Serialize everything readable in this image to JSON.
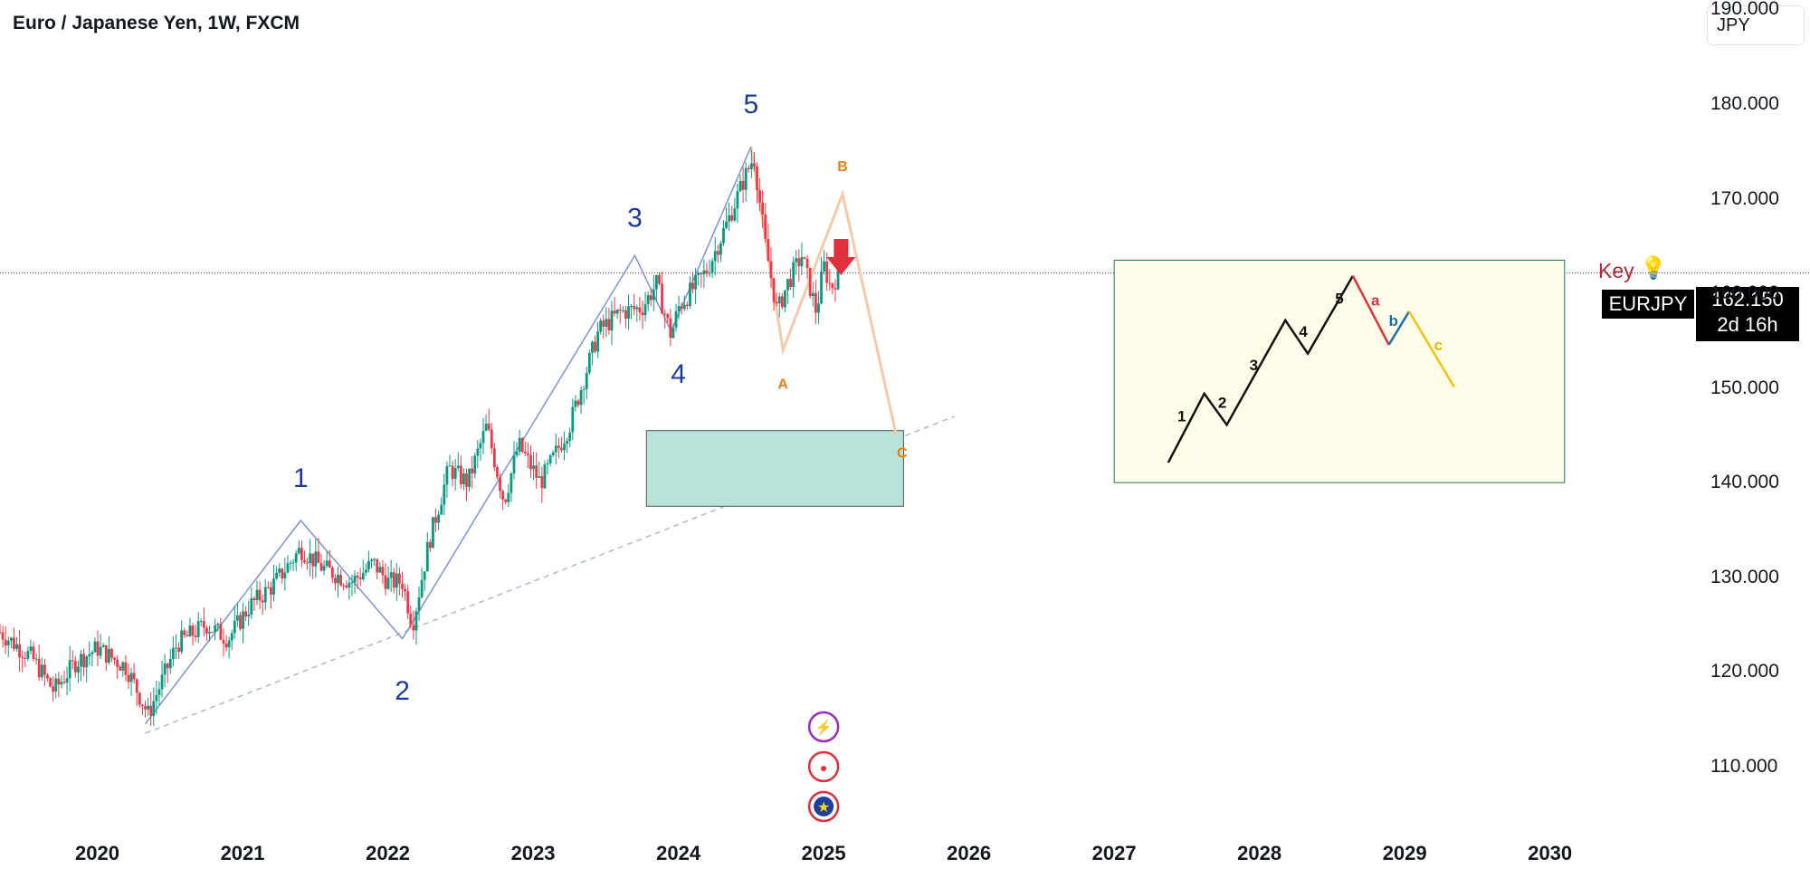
{
  "header": {
    "title": "Euro / Japanese Yen, 1W, FXCM",
    "currency_button": "JPY"
  },
  "price_scale": {
    "last_price": "162.150",
    "countdown": "2d 16h",
    "symbol": "EURJPY",
    "key_label": "Key",
    "key_icon": "lightbulb-icon"
  },
  "chart_data": {
    "type": "candlestick",
    "title": "Euro / Japanese Yen, 1W, FXCM",
    "y_ticks": [
      "190.000",
      "180.000",
      "170.000",
      "160.000",
      "150.000",
      "140.000",
      "130.000",
      "120.000",
      "110.000"
    ],
    "x_ticks": [
      "2020",
      "2021",
      "2022",
      "2023",
      "2024",
      "2025",
      "2026",
      "2027",
      "2028",
      "2029",
      "2030"
    ],
    "ylim": [
      103,
      191
    ],
    "xlim": [
      2019.33,
      2030.98
    ],
    "last_price": 162.15,
    "price_path": [
      [
        2019.33,
        124.2
      ],
      [
        2019.55,
        121.5
      ],
      [
        2019.7,
        118.0
      ],
      [
        2019.85,
        121.0
      ],
      [
        2020.0,
        122.5
      ],
      [
        2020.2,
        120.5
      ],
      [
        2020.35,
        115.5
      ],
      [
        2020.55,
        123.0
      ],
      [
        2020.75,
        125.0
      ],
      [
        2020.9,
        123.5
      ],
      [
        2021.05,
        127.0
      ],
      [
        2021.2,
        129.0
      ],
      [
        2021.4,
        133.0
      ],
      [
        2021.55,
        131.0
      ],
      [
        2021.75,
        129.5
      ],
      [
        2021.9,
        131.5
      ],
      [
        2022.0,
        129.5
      ],
      [
        2022.1,
        129.5
      ],
      [
        2022.17,
        125.0
      ],
      [
        2022.28,
        133.5
      ],
      [
        2022.42,
        141.5
      ],
      [
        2022.55,
        140.0
      ],
      [
        2022.68,
        146.0
      ],
      [
        2022.8,
        138.0
      ],
      [
        2022.9,
        144.0
      ],
      [
        2023.05,
        140.0
      ],
      [
        2023.12,
        142.0
      ],
      [
        2023.25,
        146.0
      ],
      [
        2023.45,
        156.0
      ],
      [
        2023.6,
        158.0
      ],
      [
        2023.75,
        158.5
      ],
      [
        2023.85,
        161.0
      ],
      [
        2023.95,
        155.5
      ],
      [
        2024.0,
        158.5
      ],
      [
        2024.2,
        162.5
      ],
      [
        2024.35,
        168.0
      ],
      [
        2024.45,
        172.0
      ],
      [
        2024.52,
        174.5
      ],
      [
        2024.6,
        165.0
      ],
      [
        2024.68,
        158.0
      ],
      [
        2024.75,
        161.0
      ],
      [
        2024.85,
        164.0
      ],
      [
        2024.9,
        161.0
      ],
      [
        2024.95,
        158.0
      ],
      [
        2025.0,
        163.0
      ],
      [
        2025.05,
        160.5
      ],
      [
        2025.1,
        162.15
      ]
    ],
    "wave_count": {
      "labels": [
        "1",
        "2",
        "3",
        "4",
        "5"
      ],
      "path": [
        [
          2020.33,
          114.5
        ],
        [
          2021.4,
          136.0
        ],
        [
          2022.1,
          123.5
        ],
        [
          2023.7,
          164.0
        ],
        [
          2023.95,
          156.0
        ],
        [
          2024.5,
          175.5
        ]
      ]
    },
    "correction": {
      "labels": [
        "A",
        "B",
        "C"
      ],
      "path": [
        [
          2024.5,
          175.5
        ],
        [
          2024.72,
          154.0
        ],
        [
          2025.13,
          170.5
        ],
        [
          2025.5,
          145.0
        ]
      ]
    },
    "trendline": [
      [
        2020.33,
        113.5
      ],
      [
        2025.9,
        147.0
      ]
    ],
    "target_zone": {
      "x": [
        2023.78,
        2025.55
      ],
      "y": [
        137.5,
        145.5
      ]
    },
    "sell_arrow": {
      "x": 2025.12,
      "y": 162.5
    },
    "legend_box": {
      "x": [
        2027.0,
        2030.1
      ],
      "y": [
        140.0,
        163.5
      ]
    },
    "legend_labels": [
      "1",
      "2",
      "3",
      "4",
      "5",
      "a",
      "b",
      "c"
    ],
    "colors": {
      "up": "#089981",
      "down": "#f23645",
      "wave": "#7b94d4",
      "wave_label": "#1a3aa0",
      "correction": "#f7c9a6",
      "correction_label": "#ef7d11",
      "trend": "#9fb0c9",
      "target": "#b7e3da",
      "legend_bg": "#fffdea",
      "legend_border": "#1f7a4a",
      "sell_arrow": "#e0303c",
      "key": "#b22833"
    },
    "event_icons": [
      "lightning-icon",
      "record-icon",
      "eu-flag-icon"
    ]
  }
}
